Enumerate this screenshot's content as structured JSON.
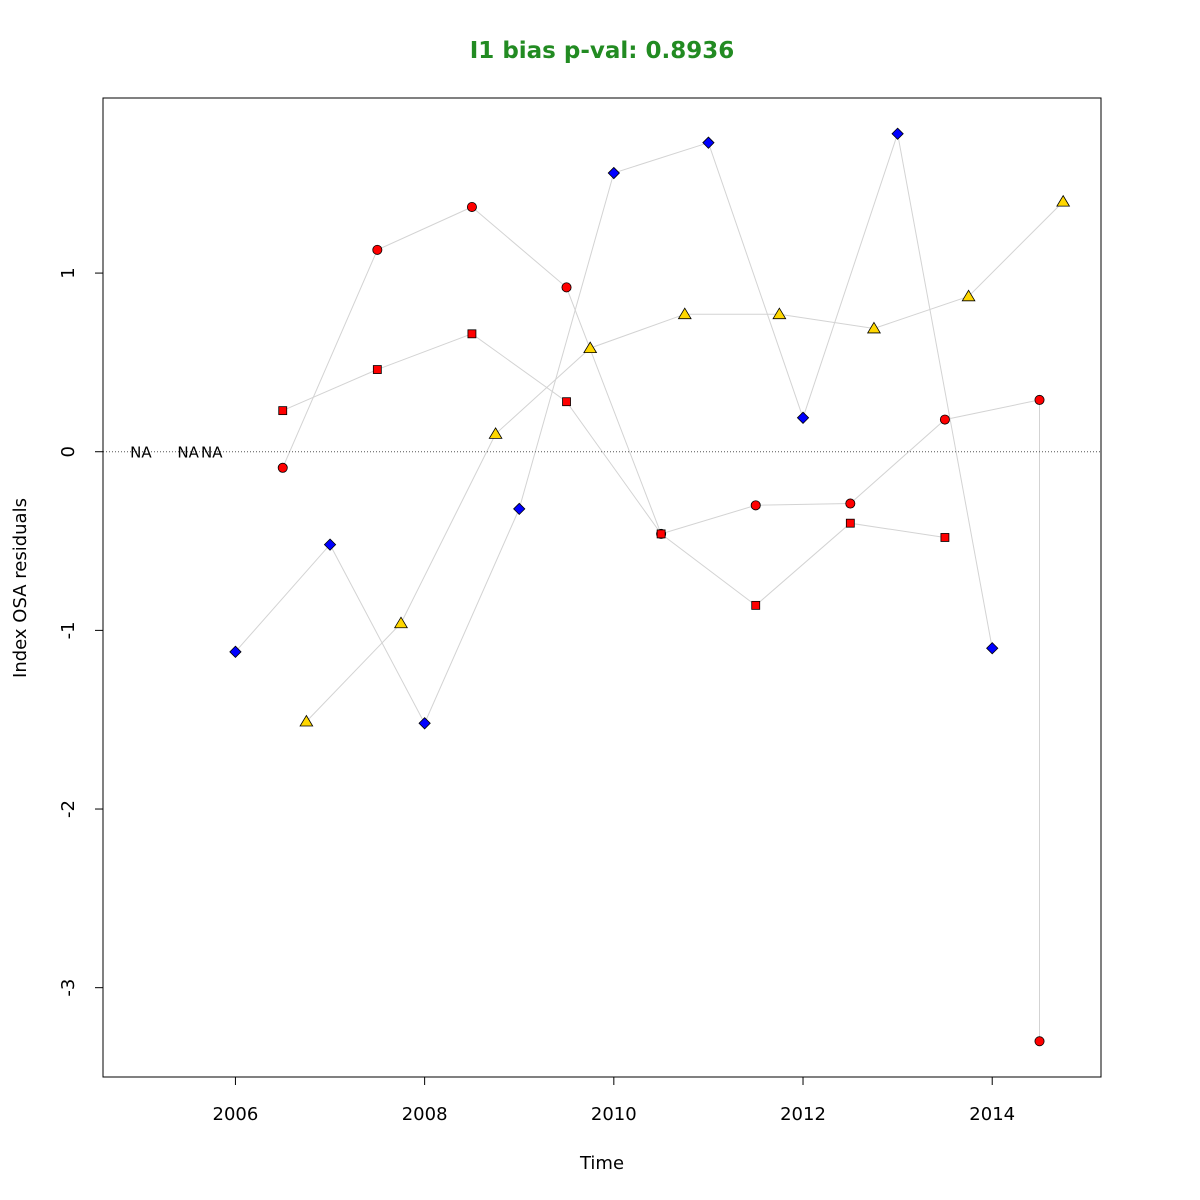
{
  "chart_data": {
    "type": "scatter",
    "title": "I1 bias p-val: 0.8936",
    "title_color": "#228B22",
    "xlabel": "Time",
    "ylabel": "Index OSA residuals",
    "xlim": [
      2004.6,
      2015.15
    ],
    "ylim": [
      -3.5,
      1.98
    ],
    "xticks": [
      2006,
      2008,
      2010,
      2012,
      2014
    ],
    "xtick_labels": [
      "2006",
      "2008",
      "2010",
      "2012",
      "2014"
    ],
    "yticks": [
      1,
      0,
      -1,
      -2,
      -3
    ],
    "ytick_labels": [
      "1",
      "0",
      "-1",
      "-2",
      "-3"
    ],
    "zero_line": {
      "value": 0,
      "style": "dotted"
    },
    "connector_color": "#d3d3d3",
    "na_labels": [
      {
        "x": 2005.0,
        "text": "NA"
      },
      {
        "x": 2005.5,
        "text": "NA"
      },
      {
        "x": 2005.75,
        "text": "NA"
      }
    ],
    "series": [
      {
        "marker": "diamond",
        "color": "#0000ff",
        "x": [
          2006,
          2007,
          2008,
          2009,
          2010,
          2011,
          2012,
          2013,
          2014
        ],
        "y": [
          -1.12,
          -0.52,
          -1.52,
          -0.32,
          1.56,
          1.73,
          0.19,
          1.78,
          -1.1
        ]
      },
      {
        "marker": "circle",
        "color": "#ff0000",
        "x": [
          2006.5,
          2007.5,
          2008.5,
          2009.5,
          2010.5,
          2011.5,
          2012.5,
          2013.5,
          2014.5,
          2014.5
        ],
        "y": [
          -0.09,
          1.13,
          1.37,
          0.92,
          -0.46,
          -0.3,
          -0.29,
          0.18,
          0.29,
          -3.3
        ]
      },
      {
        "marker": "square",
        "color": "#ff0000",
        "x": [
          2006.5,
          2007.5,
          2008.5,
          2009.5,
          2010.5,
          2011.5,
          2012.5,
          2013.5
        ],
        "y": [
          0.23,
          0.46,
          0.66,
          0.28,
          -0.46,
          -0.86,
          -0.4,
          -0.48
        ]
      },
      {
        "marker": "triangle",
        "color": "#ffd700",
        "x": [
          2006.75,
          2007.75,
          2008.75,
          2009.75,
          2010.75,
          2011.75,
          2012.75,
          2013.75,
          2014.75
        ],
        "y": [
          -1.51,
          -0.96,
          0.1,
          0.58,
          0.77,
          0.77,
          0.69,
          0.87,
          1.4
        ]
      }
    ]
  }
}
